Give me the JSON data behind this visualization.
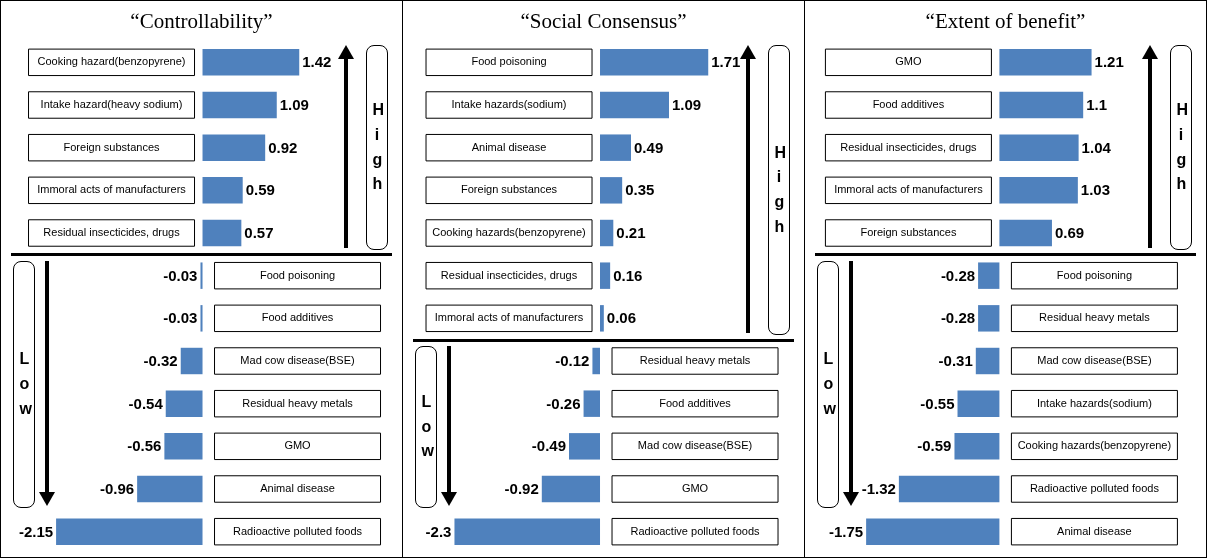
{
  "chart_data": [
    {
      "type": "bar",
      "orientation": "horizontal",
      "title": "“Controllability”",
      "color": "#4f81bd",
      "data_labels": true,
      "annotations": [
        "High",
        "Low"
      ],
      "categories": [
        "Cooking hazard(benzopyrene)",
        "Intake hazard(heavy sodium)",
        "Foreign substances",
        "Immoral acts of manufacturers",
        "Residual insecticides, drugs",
        "Food poisoning",
        "Food additives",
        "Mad cow disease(BSE)",
        "Residual heavy metals",
        "GMO",
        "Animal disease",
        "Radioactive polluted foods"
      ],
      "values": [
        1.42,
        1.09,
        0.92,
        0.59,
        0.57,
        -0.03,
        -0.03,
        -0.32,
        -0.54,
        -0.56,
        -0.96,
        -2.15
      ]
    },
    {
      "type": "bar",
      "orientation": "horizontal",
      "title": "“Social Consensus”",
      "color": "#4f81bd",
      "data_labels": true,
      "annotations": [
        "High",
        "Low"
      ],
      "categories": [
        "Food poisoning",
        "Intake hazards(sodium)",
        "Animal disease",
        "Foreign substances",
        "Cooking hazards(benzopyrene)",
        "Residual insecticides, drugs",
        "Immoral acts of manufacturers",
        "Residual heavy metals",
        "Food additives",
        "Mad cow disease(BSE)",
        "GMO",
        "Radioactive polluted foods"
      ],
      "values": [
        1.71,
        1.09,
        0.49,
        0.35,
        0.21,
        0.16,
        0.06,
        -0.12,
        -0.26,
        -0.49,
        -0.92,
        -2.3
      ]
    },
    {
      "type": "bar",
      "orientation": "horizontal",
      "title": "“Extent of benefit”",
      "color": "#4f81bd",
      "data_labels": true,
      "annotations": [
        "High",
        "Low"
      ],
      "categories": [
        "GMO",
        "Food additives",
        "Residual insecticides, drugs",
        "Immoral acts of manufacturers",
        "Foreign substances",
        "Food poisoning",
        "Residual heavy metals",
        "Mad cow disease(BSE)",
        "Intake hazards(sodium)",
        "Cooking hazards(benzopyrene)",
        "Radioactive polluted foods",
        "Animal disease"
      ],
      "values": [
        1.21,
        1.1,
        1.04,
        1.03,
        0.69,
        -0.28,
        -0.28,
        -0.31,
        -0.55,
        -0.59,
        -1.32,
        -1.75
      ]
    }
  ]
}
